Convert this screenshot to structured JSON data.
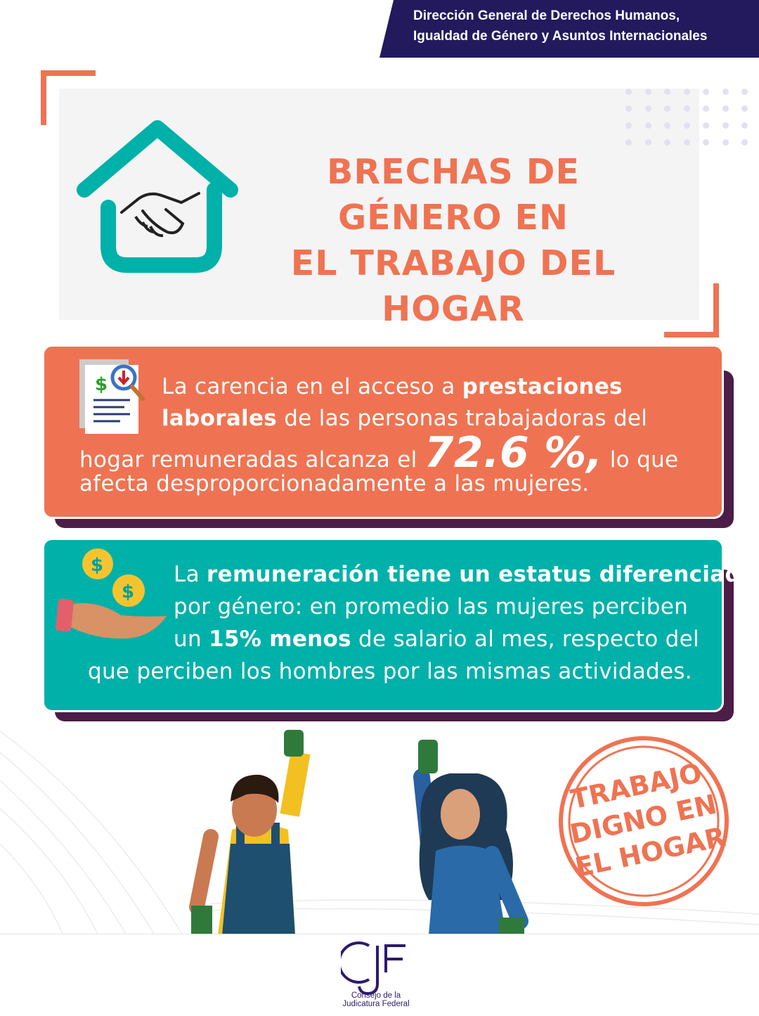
{
  "header": {
    "line1": "Dirección General de Derechos Humanos,",
    "line2": "Igualdad de Género y Asuntos Internacionales"
  },
  "title": {
    "line1": "BRECHAS DE GÉNERO EN",
    "line2": "EL TRABAJO DEL HOGAR"
  },
  "card1": {
    "l1_a": "La carencia en el acceso a ",
    "l1_b": "prestaciones",
    "l2_a": "laborales",
    "l2_b": " de las personas trabajadoras del",
    "l3_a": "hogar remuneradas alcanza el ",
    "l3_value": "72.6 %,",
    "l3_b": " lo que",
    "l4": "afecta desproporcionadamente a las mujeres."
  },
  "card2": {
    "l1_a": "La ",
    "l1_b": "remuneración tiene un estatus diferenciado",
    "l2": "por género: en promedio las mujeres perciben",
    "l3_a": "un ",
    "l3_value": "15% menos",
    "l3_b": "  de salario al mes, respecto del",
    "l4": "que perciben los hombres por las mismas actividades."
  },
  "stamp": {
    "line1": "TRABAJO",
    "line2": "DIGNO EN",
    "line3": "EL HOGAR"
  },
  "logo": {
    "mark": "CJF",
    "line1": "Consejo de la",
    "line2": "Judicatura Federal"
  },
  "colors": {
    "navy": "#231a5e",
    "orange": "#ef7352",
    "teal": "#00b1a9",
    "shadow": "#4b1d47"
  }
}
